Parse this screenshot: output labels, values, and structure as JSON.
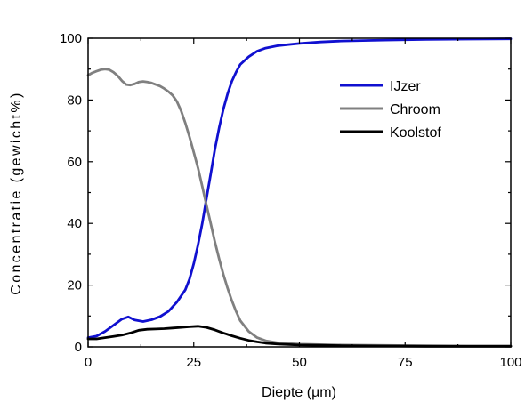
{
  "chart_data": {
    "type": "line",
    "title": "",
    "xlabel": "Diepte (µm)",
    "ylabel": "Concentratie (gewicht%)",
    "xlim": [
      0,
      100
    ],
    "ylim": [
      0,
      100
    ],
    "xticks": [
      0,
      25,
      50,
      75,
      100
    ],
    "xtick_labels": [
      "0",
      "25",
      "50",
      "75",
      "100"
    ],
    "yticks": [
      0,
      20,
      40,
      60,
      80,
      100
    ],
    "ytick_labels": [
      "0",
      "20",
      "40",
      "60",
      "80",
      "100"
    ],
    "grid": false,
    "legend_position": "top-right",
    "series": [
      {
        "name": "IJzer",
        "color": "#1010d0",
        "x": [
          0,
          2,
          4,
          6,
          8,
          9.5,
          11,
          13,
          15,
          17,
          19,
          21,
          23,
          24,
          25,
          26,
          27,
          28,
          29,
          30,
          31,
          32,
          33,
          34,
          35,
          36,
          38,
          40,
          42,
          45,
          50,
          55,
          60,
          70,
          80,
          90,
          100
        ],
        "y": [
          3,
          3.5,
          5,
          7,
          9,
          9.7,
          8.7,
          8.2,
          8.8,
          9.8,
          11.5,
          14.5,
          18.5,
          22,
          27,
          33,
          40,
          48,
          56,
          64,
          71,
          77,
          82,
          86,
          89,
          91.5,
          94,
          95.8,
          96.8,
          97.6,
          98.3,
          98.8,
          99.1,
          99.4,
          99.6,
          99.7,
          99.8
        ]
      },
      {
        "name": "Chroom",
        "color": "#808080",
        "x": [
          0,
          1,
          2,
          3,
          4,
          5,
          6,
          7,
          8,
          9,
          10,
          11,
          12,
          13,
          14,
          15,
          16,
          17,
          18,
          19,
          20,
          21,
          22,
          23,
          24,
          25,
          26,
          27,
          28,
          29,
          30,
          31,
          32,
          33,
          34,
          35,
          36,
          38,
          40,
          42,
          45,
          50,
          60,
          70,
          80,
          90,
          100
        ],
        "y": [
          88,
          88.8,
          89.3,
          89.8,
          90,
          89.8,
          89,
          87.8,
          86.2,
          85,
          84.8,
          85.2,
          85.8,
          86,
          85.8,
          85.5,
          85,
          84.5,
          83.7,
          82.7,
          81.5,
          79.5,
          76.5,
          72.5,
          68,
          63,
          58,
          52,
          46,
          40,
          34,
          28.5,
          23.5,
          19,
          15,
          11.5,
          8.5,
          5,
          3,
          2,
          1.3,
          0.9,
          0.6,
          0.5,
          0.4,
          0.3,
          0.3
        ]
      },
      {
        "name": "Koolstof",
        "color": "#000000",
        "x": [
          0,
          2,
          4,
          6,
          8,
          10,
          12,
          14,
          16,
          18,
          20,
          22,
          24,
          26,
          28,
          30,
          32,
          34,
          36,
          38,
          40,
          42,
          45,
          50,
          60,
          70,
          80,
          90,
          100
        ],
        "y": [
          2.6,
          2.6,
          3,
          3.4,
          3.8,
          4.5,
          5.4,
          5.7,
          5.8,
          5.9,
          6.1,
          6.3,
          6.5,
          6.7,
          6.3,
          5.5,
          4.5,
          3.6,
          2.8,
          2.1,
          1.6,
          1.2,
          0.9,
          0.6,
          0.4,
          0.3,
          0.2,
          0.2,
          0.2
        ]
      }
    ]
  }
}
